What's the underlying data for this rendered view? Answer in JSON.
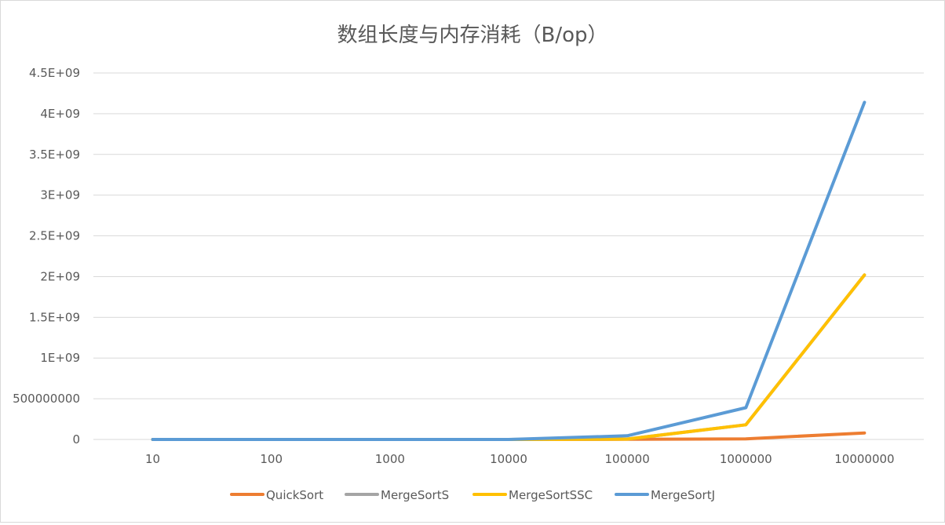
{
  "chart_data": {
    "type": "line",
    "title": "数组长度与内存消耗（B/op）",
    "xlabel": "",
    "ylabel": "",
    "categories": [
      "10",
      "100",
      "1000",
      "10000",
      "100000",
      "1000000",
      "10000000"
    ],
    "ylim": [
      0,
      4500000000
    ],
    "yticks": [
      0,
      500000000,
      1000000000,
      1500000000,
      2000000000,
      2500000000,
      3000000000,
      3500000000,
      4000000000,
      4500000000
    ],
    "ytick_labels": [
      "0",
      "500000000",
      "1E+09",
      "1.5E+09",
      "2E+09",
      "2.5E+09",
      "3E+09",
      "3.5E+09",
      "4E+09",
      "4.5E+09"
    ],
    "grid": true,
    "legend_position": "bottom",
    "series": [
      {
        "name": "QuickSort",
        "color": "#ED7D31",
        "values": [
          0,
          0,
          0,
          0,
          2000000,
          8000000,
          80000000
        ]
      },
      {
        "name": "MergeSortS",
        "color": "#A5A5A5",
        "values": [
          0,
          0,
          0,
          100000,
          5000000,
          180000000,
          2020000000
        ]
      },
      {
        "name": "MergeSortSSC",
        "color": "#FFC000",
        "values": [
          0,
          0,
          0,
          100000,
          5000000,
          180000000,
          2020000000
        ]
      },
      {
        "name": "MergeSortJ",
        "color": "#5B9BD5",
        "values": [
          200,
          2000,
          20000,
          400000,
          45000000,
          390000000,
          4140000000
        ]
      }
    ]
  }
}
